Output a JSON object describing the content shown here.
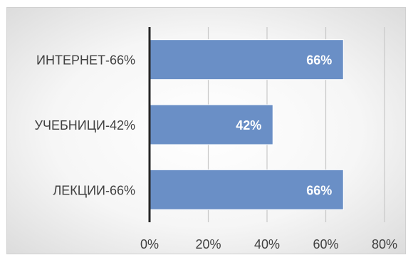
{
  "chart_data": {
    "type": "bar",
    "orientation": "horizontal",
    "categories": [
      "ИНТЕРНЕТ-66%",
      "УЧЕБНИЦИ-42%",
      "ЛЕКЦИИ-66%"
    ],
    "values": [
      66,
      42,
      66
    ],
    "data_labels": [
      "66%",
      "42%",
      "66%"
    ],
    "xlim": [
      0,
      80
    ],
    "x_ticks": [
      0,
      20,
      40,
      60,
      80
    ],
    "x_tick_labels": [
      "0%",
      "20%",
      "40%",
      "60%",
      "80%"
    ],
    "grid": true,
    "legend": "none",
    "title": "",
    "xlabel": "",
    "ylabel": "",
    "colors": {
      "bar_fill": "#6a8fc6",
      "bar_stroke": "#ffffff",
      "gridline": "#c8c8c8",
      "axis": "#262626",
      "text": "#404040",
      "data_label": "#ffffff"
    }
  }
}
